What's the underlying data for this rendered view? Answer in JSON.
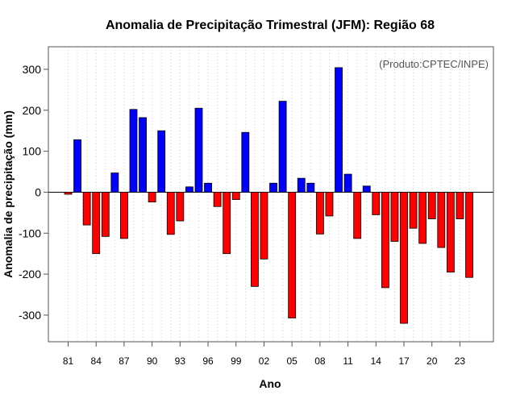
{
  "chart_data": {
    "type": "bar",
    "title": "Anomalia de Precipitação Trimestral (JFM): Região 68",
    "xlabel": "Ano",
    "ylabel": "Anomalia de precipitação (mm)",
    "annotation": "(Produto:CPTEC/INPE)",
    "ylim": [
      -365,
      355
    ],
    "yticks": [
      -300,
      -200,
      -100,
      0,
      100,
      200,
      300
    ],
    "categories": [
      "1981",
      "1982",
      "1983",
      "1984",
      "1985",
      "1986",
      "1987",
      "1988",
      "1989",
      "1990",
      "1991",
      "1992",
      "1993",
      "1994",
      "1995",
      "1996",
      "1997",
      "1998",
      "1999",
      "2000",
      "2001",
      "2002",
      "2003",
      "2004",
      "2005",
      "2006",
      "2007",
      "2008",
      "2009",
      "2010",
      "2011",
      "2012",
      "2013",
      "2014",
      "2015",
      "2016",
      "2017",
      "2018",
      "2019",
      "2020",
      "2021",
      "2022",
      "2023",
      "2024"
    ],
    "xtick_labels": [
      {
        "index": 0,
        "label": "81"
      },
      {
        "index": 3,
        "label": "84"
      },
      {
        "index": 6,
        "label": "87"
      },
      {
        "index": 9,
        "label": "90"
      },
      {
        "index": 12,
        "label": "93"
      },
      {
        "index": 15,
        "label": "96"
      },
      {
        "index": 18,
        "label": "99"
      },
      {
        "index": 21,
        "label": "02"
      },
      {
        "index": 24,
        "label": "05"
      },
      {
        "index": 27,
        "label": "08"
      },
      {
        "index": 30,
        "label": "11"
      },
      {
        "index": 33,
        "label": "14"
      },
      {
        "index": 36,
        "label": "17"
      },
      {
        "index": 39,
        "label": "20"
      },
      {
        "index": 42,
        "label": "23"
      }
    ],
    "values": [
      -5,
      128,
      -80,
      -150,
      -108,
      47,
      -113,
      202,
      182,
      -24,
      150,
      -103,
      -70,
      13,
      205,
      22,
      -35,
      -150,
      -18,
      146,
      -230,
      -163,
      22,
      222,
      -307,
      34,
      22,
      -102,
      -58,
      304,
      44,
      -113,
      15,
      -55,
      -233,
      -120,
      -320,
      -88,
      -125,
      -65,
      -135,
      -195,
      -65,
      -208
    ],
    "colors": {
      "positive": "#0000ff",
      "negative": "#ff0000",
      "zero_line": "#000000",
      "grid": "#cccccc"
    }
  }
}
